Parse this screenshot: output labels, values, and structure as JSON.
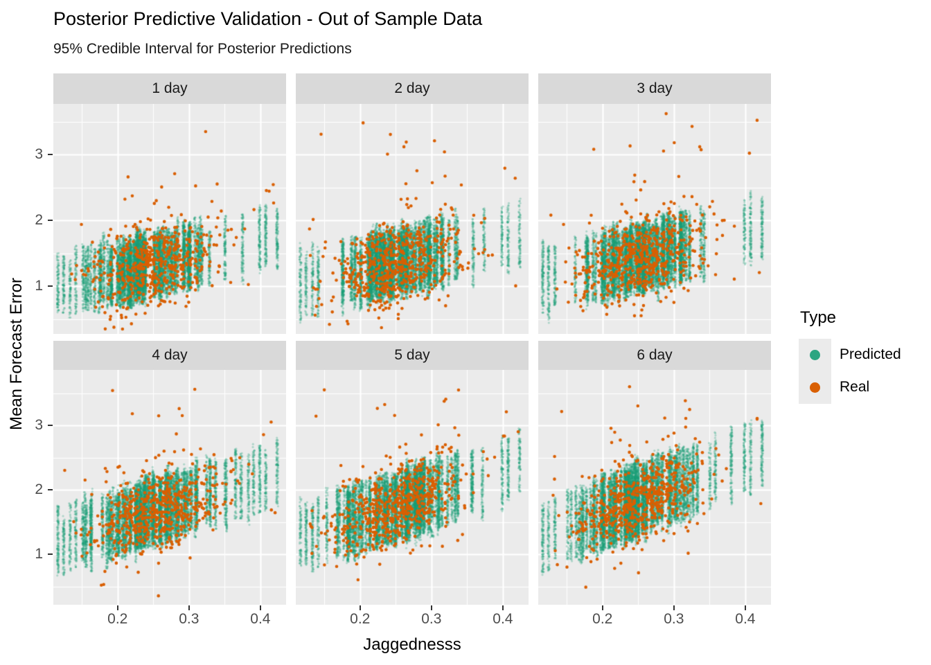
{
  "title": "Posterior Predictive Validation - Out of Sample Data",
  "subtitle": "95% Credible Interval for Posterior Predictions",
  "axes": {
    "x": {
      "label": "Jaggednesss",
      "tick_labels": [
        "0.2",
        "0.3",
        "0.4"
      ],
      "tick_values": [
        0.2,
        0.3,
        0.4
      ],
      "minor_gridlines": [
        0.15,
        0.25,
        0.35
      ],
      "range": [
        0.11,
        0.436
      ]
    },
    "y": {
      "label": "Mean Forecast Error",
      "tick_labels": [
        "1",
        "2",
        "3"
      ],
      "tick_values": [
        1,
        2,
        3
      ],
      "minor_gridlines": [
        0.5,
        1.5,
        2.5,
        3.5
      ],
      "range": [
        0.22,
        3.8
      ]
    }
  },
  "legend": {
    "title": "Type",
    "items": [
      {
        "label": "Predicted",
        "color": "#1B9E77"
      },
      {
        "label": "Real",
        "color": "#D95F02"
      }
    ]
  },
  "colors": {
    "background": "#FFFFFF",
    "panel_background": "#EBEBEB",
    "strip_background": "#D9D9D9",
    "gridline": "#FFFFFF",
    "axis_text": "#4D4D4D",
    "tick_mark": "#333333",
    "predicted": "#1B9E77",
    "real": "#D95F02",
    "predicted_point_alpha": 0.3
  },
  "chart_data": {
    "type": "scatter",
    "description": "Faceted scatter: green semi-transparent posterior-predictive draws form vertical 95% credible-interval strips at each observed Jaggedness value; orange dots are real out-of-sample mean forecast errors.",
    "xlabel": "Jaggednesss",
    "ylabel": "Mean Forecast Error",
    "xlim": [
      0.11,
      0.436
    ],
    "ylim": [
      0.22,
      3.8
    ],
    "series": [
      {
        "name": "Predicted",
        "color": "#1B9E77",
        "alpha": 0.3
      },
      {
        "name": "Real",
        "color": "#D95F02",
        "alpha": 1.0
      }
    ],
    "x_value_distribution": {
      "mean": 0.253,
      "sd": 0.05,
      "min": 0.115,
      "max": 0.425
    },
    "facets": [
      {
        "label": "1 day",
        "row": 0,
        "col": 0,
        "trend_intercept": 0.77,
        "trend_slope": 2.2,
        "ci_half_width": 0.54,
        "n_x_strips": 104,
        "points_per_strip": 115,
        "n_real": 520,
        "n_real_outliers": 22,
        "real_outlier_max": 3.42,
        "seed": 101
      },
      {
        "label": "2 day",
        "row": 0,
        "col": 1,
        "trend_intercept": 0.76,
        "trend_slope": 2.4,
        "ci_half_width": 0.57,
        "n_x_strips": 106,
        "points_per_strip": 115,
        "n_real": 550,
        "n_real_outliers": 24,
        "real_outlier_max": 3.48,
        "seed": 202
      },
      {
        "label": "3 day",
        "row": 0,
        "col": 2,
        "trend_intercept": 0.78,
        "trend_slope": 2.6,
        "ci_half_width": 0.58,
        "n_x_strips": 108,
        "points_per_strip": 115,
        "n_real": 550,
        "n_real_outliers": 26,
        "real_outlier_max": 3.62,
        "seed": 303
      },
      {
        "label": "4 day",
        "row": 1,
        "col": 0,
        "trend_intercept": 0.78,
        "trend_slope": 3.5,
        "ci_half_width": 0.58,
        "n_x_strips": 105,
        "points_per_strip": 115,
        "n_real": 560,
        "n_real_outliers": 24,
        "real_outlier_max": 3.66,
        "seed": 404
      },
      {
        "label": "5 day",
        "row": 1,
        "col": 1,
        "trend_intercept": 0.85,
        "trend_slope": 3.6,
        "ci_half_width": 0.6,
        "n_x_strips": 107,
        "points_per_strip": 115,
        "n_real": 570,
        "n_real_outliers": 28,
        "real_outlier_max": 3.55,
        "seed": 505
      },
      {
        "label": "6 day",
        "row": 1,
        "col": 2,
        "trend_intercept": 0.82,
        "trend_slope": 4.1,
        "ci_half_width": 0.62,
        "n_x_strips": 108,
        "points_per_strip": 115,
        "n_real": 580,
        "n_real_outliers": 26,
        "real_outlier_max": 3.6,
        "seed": 606
      }
    ]
  }
}
